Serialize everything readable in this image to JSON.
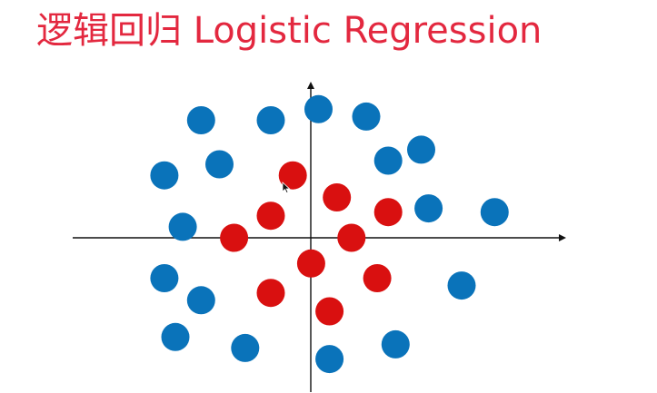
{
  "title": "逻辑回归 Logistic Regression",
  "colors": {
    "title": "#e3283f",
    "blue_class": "#0a73ba",
    "red_class": "#d91010",
    "axis": "#111111"
  },
  "chart_data": {
    "type": "scatter",
    "title": "逻辑回归 Logistic Regression",
    "xlabel": "",
    "ylabel": "",
    "grid": false,
    "legend": "none",
    "xlim": [
      -6.5,
      6.9
    ],
    "ylim": [
      -4.2,
      4.2
    ],
    "series": [
      {
        "key": "blue",
        "color": "#0a73ba",
        "points": [
          [
            -3.0,
            3.2
          ],
          [
            -1.1,
            3.2
          ],
          [
            0.2,
            3.5
          ],
          [
            1.5,
            3.3
          ],
          [
            -4.0,
            1.7
          ],
          [
            -2.5,
            2.0
          ],
          [
            2.1,
            2.1
          ],
          [
            3.0,
            2.4
          ],
          [
            3.2,
            0.8
          ],
          [
            5.0,
            0.7
          ],
          [
            -3.5,
            0.3
          ],
          [
            -4.0,
            -1.1
          ],
          [
            -3.0,
            -1.7
          ],
          [
            4.1,
            -1.3
          ],
          [
            -3.7,
            -2.7
          ],
          [
            -1.8,
            -3.0
          ],
          [
            0.5,
            -3.3
          ],
          [
            2.3,
            -2.9
          ]
        ]
      },
      {
        "key": "red",
        "color": "#d91010",
        "points": [
          [
            -0.5,
            1.7
          ],
          [
            0.7,
            1.1
          ],
          [
            2.1,
            0.7
          ],
          [
            -1.1,
            0.6
          ],
          [
            -2.1,
            0.0
          ],
          [
            1.1,
            0.0
          ],
          [
            0.0,
            -0.7
          ],
          [
            1.8,
            -1.1
          ],
          [
            -1.1,
            -1.5
          ],
          [
            0.5,
            -2.0
          ]
        ]
      }
    ]
  }
}
